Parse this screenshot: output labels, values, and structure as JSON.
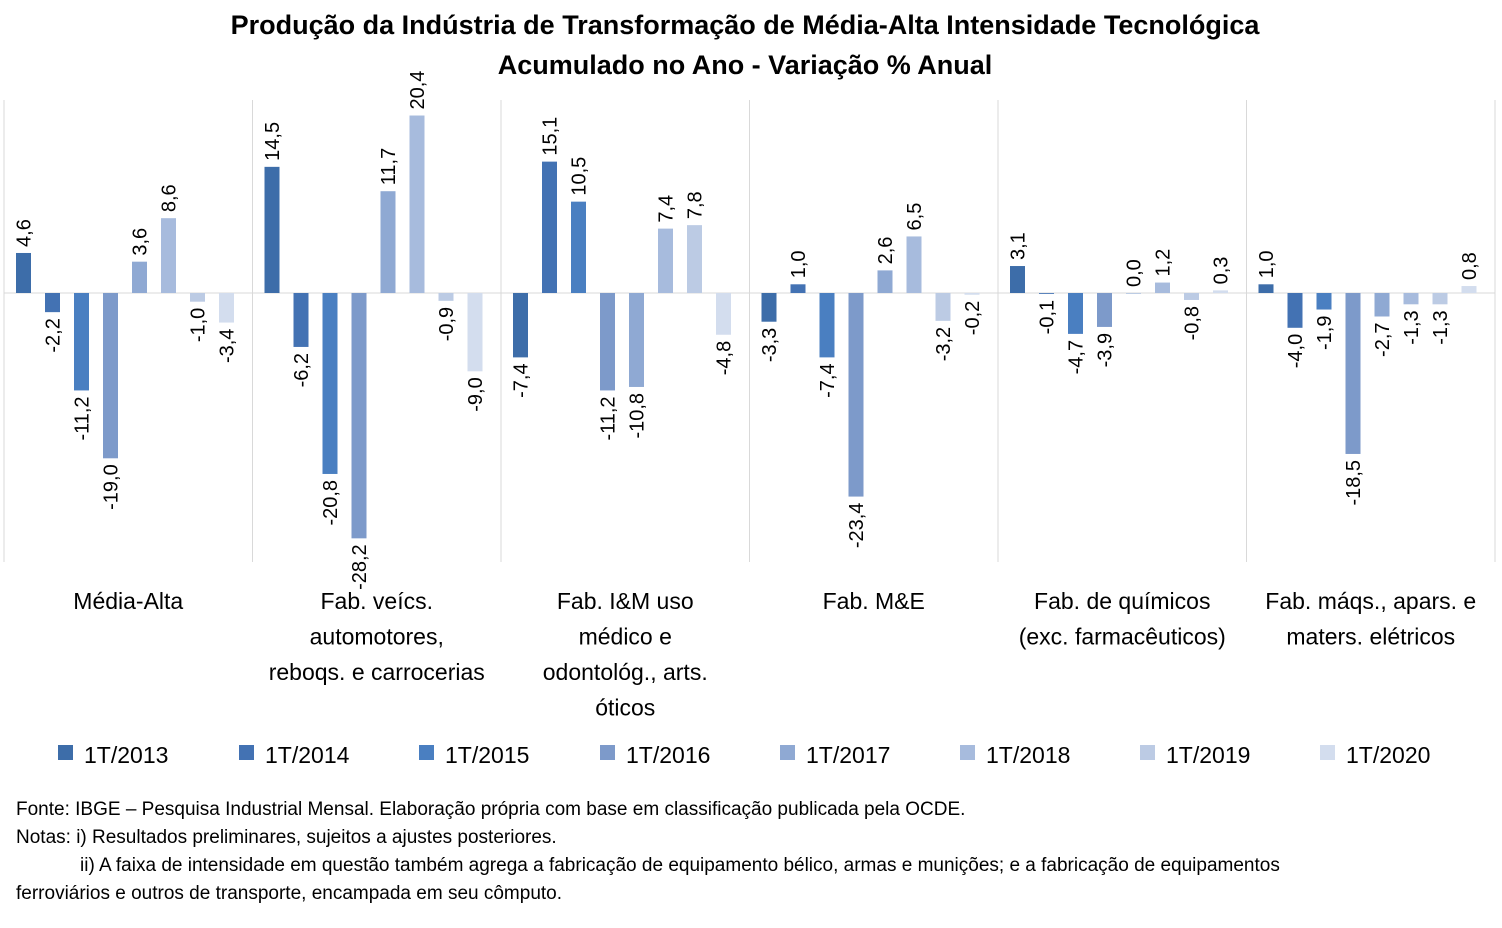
{
  "chart_data": {
    "type": "bar",
    "title": "Produção da Indústria de Transformação de Média-Alta Intensidade Tecnológica",
    "subtitle": "Acumulado no Ano - Variação % Anual",
    "xlabel": "",
    "ylabel": "",
    "ylim": [
      -30,
      22
    ],
    "legend_position": "bottom",
    "grid": false,
    "categories": [
      [
        "Média-Alta"
      ],
      [
        "Fab. veícs.",
        "automotores,",
        "reboqs. e carrocerias"
      ],
      [
        "Fab. I&M uso",
        "médico e",
        "odontológ., arts.",
        "óticos"
      ],
      [
        "Fab. M&E"
      ],
      [
        "Fab. de químicos",
        "(exc. farmacêuticos)"
      ],
      [
        "Fab. máqs., apars. e",
        "maters. elétricos"
      ]
    ],
    "series": [
      {
        "name": "1T/2013",
        "color": "#3D6DA9",
        "values": [
          4.6,
          14.5,
          -7.4,
          -3.3,
          3.1,
          1.0
        ],
        "labels": [
          "4,6",
          "14,5",
          "-7,4",
          "-3,3",
          "3,1",
          "1,0"
        ]
      },
      {
        "name": "1T/2014",
        "color": "#4372B3",
        "values": [
          -2.2,
          -6.2,
          15.1,
          1.0,
          -0.1,
          -4.0
        ],
        "labels": [
          "-2,2",
          "-6,2",
          "15,1",
          "1,0",
          "-0,1",
          "-4,0"
        ]
      },
      {
        "name": "1T/2015",
        "color": "#4A7FC1",
        "values": [
          -11.2,
          -20.8,
          10.5,
          -7.4,
          -4.7,
          -1.9
        ],
        "labels": [
          "-11,2",
          "-20,8",
          "10,5",
          "-7,4",
          "-4,7",
          "-1,9"
        ]
      },
      {
        "name": "1T/2016",
        "color": "#7D9ACA",
        "values": [
          -19.0,
          -28.2,
          -11.2,
          -23.4,
          -3.9,
          -18.5
        ],
        "labels": [
          "-19,0",
          "-28,2",
          "-11,2",
          "-23,4",
          "-3,9",
          "-18,5"
        ]
      },
      {
        "name": "1T/2017",
        "color": "#8FA9D3",
        "values": [
          3.6,
          11.7,
          -10.8,
          2.6,
          0.0,
          -2.7
        ],
        "labels": [
          "3,6",
          "11,7",
          "-10,8",
          "2,6",
          "0,0",
          "-2,7"
        ]
      },
      {
        "name": "1T/2018",
        "color": "#A7BBDD",
        "values": [
          8.6,
          20.4,
          7.4,
          6.5,
          1.2,
          -1.3
        ],
        "labels": [
          "8,6",
          "20,4",
          "7,4",
          "6,5",
          "1,2",
          "-1,3"
        ]
      },
      {
        "name": "1T/2019",
        "color": "#BCCBE4",
        "values": [
          -1.0,
          -0.9,
          7.8,
          -3.2,
          -0.8,
          -1.3
        ],
        "labels": [
          "-1,0",
          "-0,9",
          "7,8",
          "-3,2",
          "-0,8",
          "-1,3"
        ]
      },
      {
        "name": "1T/2020",
        "color": "#D3DDEE",
        "values": [
          -3.4,
          -9.0,
          -4.8,
          -0.2,
          0.3,
          0.8
        ],
        "labels": [
          "-3,4",
          "-9,0",
          "-4,8",
          "-0,2",
          "0,3",
          "0,8"
        ]
      }
    ]
  },
  "notes": {
    "line1": "Fonte: IBGE – Pesquisa Industrial Mensal. Elaboração própria com base em classificação publicada pela OCDE.",
    "line2": "Notas: i) Resultados preliminares, sujeitos a ajustes posteriores.",
    "line3": "ii) A faixa de intensidade em questão também agrega a fabricação de equipamento bélico, armas e munições; e a fabricação de equipamentos",
    "line4": "ferroviários e outros de transporte, encampada em seu cômputo."
  }
}
